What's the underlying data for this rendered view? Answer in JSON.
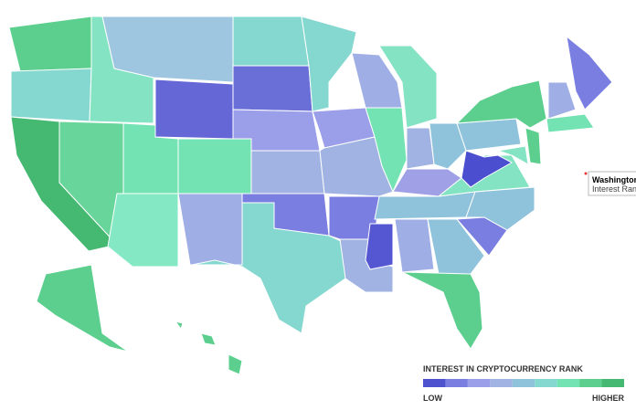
{
  "tooltip": {
    "title": "Washington D",
    "label": "Interest Rank"
  },
  "legend": {
    "title": "INTEREST IN CRYPTOCURRENCY RANK",
    "low": "LOW",
    "high": "HIGHER",
    "colors": [
      "#4f52cf",
      "#7a7ee0",
      "#9b9ee8",
      "#a0b3e2",
      "#8fc3dc",
      "#84d8cf",
      "#74e3b4",
      "#5ccf8e",
      "#45b872"
    ]
  }
}
